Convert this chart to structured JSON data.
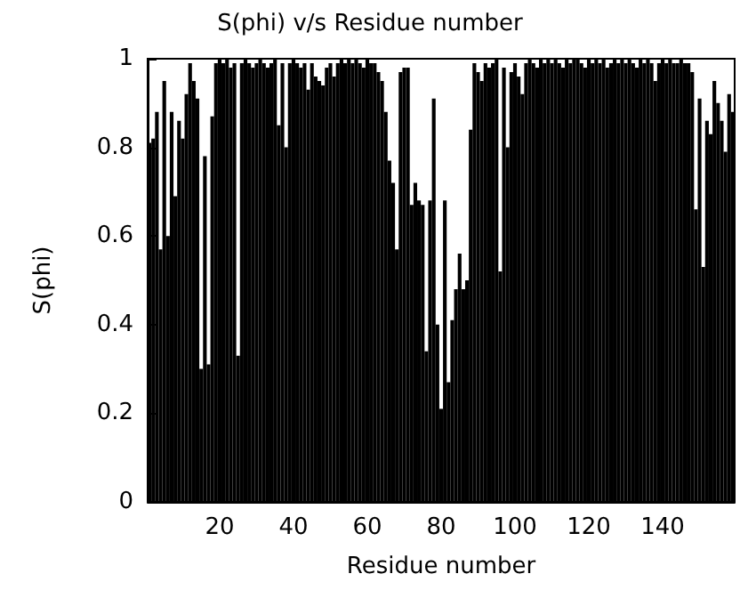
{
  "chart_data": {
    "type": "bar",
    "title": "S(phi) v/s Residue number",
    "xlabel": "Residue number",
    "ylabel": "S(phi)",
    "x": [
      1,
      2,
      3,
      4,
      5,
      6,
      7,
      8,
      9,
      10,
      11,
      12,
      13,
      14,
      15,
      16,
      17,
      18,
      19,
      20,
      21,
      22,
      23,
      24,
      25,
      26,
      27,
      28,
      29,
      30,
      31,
      32,
      33,
      34,
      35,
      36,
      37,
      38,
      39,
      40,
      41,
      42,
      43,
      44,
      45,
      46,
      47,
      48,
      49,
      50,
      51,
      52,
      53,
      54,
      55,
      56,
      57,
      58,
      59,
      60,
      61,
      62,
      63,
      64,
      65,
      66,
      67,
      68,
      69,
      70,
      71,
      72,
      73,
      74,
      75,
      76,
      77,
      78,
      79,
      80,
      81,
      82,
      83,
      84,
      85,
      86,
      87,
      88,
      89,
      90,
      91,
      92,
      93,
      94,
      95,
      96,
      97,
      98,
      99,
      100,
      101,
      102,
      103,
      104,
      105,
      106,
      107,
      108,
      109,
      110,
      111,
      112,
      113,
      114,
      115,
      116,
      117,
      118,
      119,
      120,
      121,
      122,
      123,
      124,
      125,
      126,
      127,
      128,
      129,
      130,
      131,
      132,
      133,
      134,
      135,
      136,
      137,
      138,
      139,
      140,
      141,
      142,
      143,
      144,
      145,
      146,
      147,
      148,
      149,
      150,
      151,
      152,
      153,
      154,
      155,
      156,
      157,
      158,
      159
    ],
    "values": [
      0.81,
      0.82,
      0.88,
      0.57,
      0.95,
      0.6,
      0.88,
      0.69,
      0.86,
      0.82,
      0.92,
      0.99,
      0.95,
      0.91,
      0.3,
      0.78,
      0.31,
      0.87,
      0.99,
      1,
      0.99,
      1,
      0.98,
      0.99,
      0.33,
      0.99,
      1,
      0.99,
      0.98,
      0.99,
      1,
      0.99,
      0.98,
      0.99,
      1,
      0.85,
      0.99,
      0.8,
      0.99,
      1,
      0.99,
      0.98,
      0.99,
      0.93,
      0.99,
      0.96,
      0.95,
      0.94,
      0.98,
      0.99,
      0.96,
      0.99,
      1,
      0.99,
      1,
      0.99,
      1,
      0.99,
      0.98,
      1,
      0.99,
      0.99,
      0.97,
      0.95,
      0.88,
      0.77,
      0.72,
      0.57,
      0.97,
      0.98,
      0.98,
      0.67,
      0.72,
      0.68,
      0.67,
      0.34,
      0.68,
      0.91,
      0.4,
      0.21,
      0.68,
      0.27,
      0.41,
      0.48,
      0.56,
      0.48,
      0.5,
      0.84,
      0.99,
      0.97,
      0.95,
      0.99,
      0.98,
      0.99,
      1,
      0.52,
      0.98,
      0.8,
      0.97,
      0.99,
      0.96,
      0.92,
      0.99,
      1,
      0.99,
      0.98,
      1,
      0.99,
      1,
      0.99,
      1,
      0.99,
      0.98,
      1,
      0.99,
      1,
      1,
      0.99,
      0.98,
      1,
      0.99,
      1,
      0.99,
      1,
      0.98,
      0.99,
      1,
      0.99,
      1,
      0.99,
      1,
      0.99,
      0.98,
      1,
      0.99,
      1,
      0.99,
      0.95,
      0.99,
      1,
      0.99,
      1,
      0.99,
      0.99,
      1,
      0.99,
      0.99,
      0.97,
      0.66,
      0.91,
      0.53,
      0.86,
      0.83,
      0.95,
      0.9,
      0.86,
      0.79,
      0.92,
      0.88
    ],
    "color": "#000000",
    "xlim": [
      0.5,
      159.5
    ],
    "xticks": [
      20,
      40,
      60,
      80,
      100,
      120,
      140
    ],
    "ylim": [
      0,
      1
    ],
    "yticks": [
      0,
      0.2,
      0.4,
      0.6,
      0.8,
      1
    ],
    "grid": false
  }
}
